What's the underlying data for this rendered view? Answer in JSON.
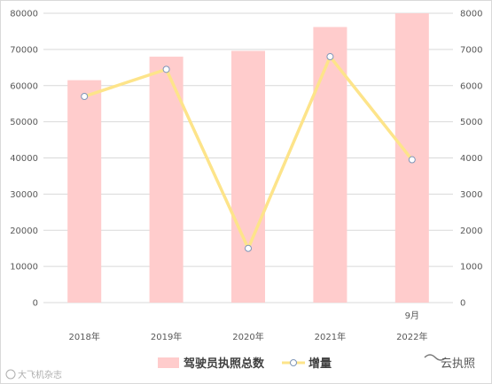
{
  "chart_data": {
    "type": "bar",
    "categories": [
      "2018年",
      "2019年",
      "2020年",
      "2021年",
      "2022年"
    ],
    "category_annotations": [
      "",
      "",
      "",
      "",
      "9月"
    ],
    "y_left": {
      "ticks": [
        "0",
        "10000",
        "20000",
        "30000",
        "40000",
        "50000",
        "60000",
        "70000",
        "80000"
      ],
      "range": [
        0,
        80000
      ]
    },
    "y_right": {
      "ticks": [
        "0",
        "1000",
        "2000",
        "3000",
        "4000",
        "5000",
        "6000",
        "7000",
        "8000"
      ],
      "range": [
        0,
        8000
      ]
    },
    "series": [
      {
        "name": "驾驶员执照总数",
        "kind": "bar",
        "axis": "left",
        "color": "#ffcccc",
        "values": [
          61500,
          68000,
          69600,
          76200,
          80000
        ]
      },
      {
        "name": "增量",
        "kind": "line",
        "axis": "right",
        "color": "#fde48a",
        "marker_edge": "#7f96b8",
        "values": [
          5700,
          6450,
          1500,
          6800,
          3950
        ]
      }
    ],
    "grid": true,
    "legend": "bottom"
  },
  "watermarks": {
    "left": "大飞机杂志",
    "right": "云执照"
  },
  "colors": {
    "grid": "#d9d9d9",
    "frame": "#d9d9d9"
  }
}
